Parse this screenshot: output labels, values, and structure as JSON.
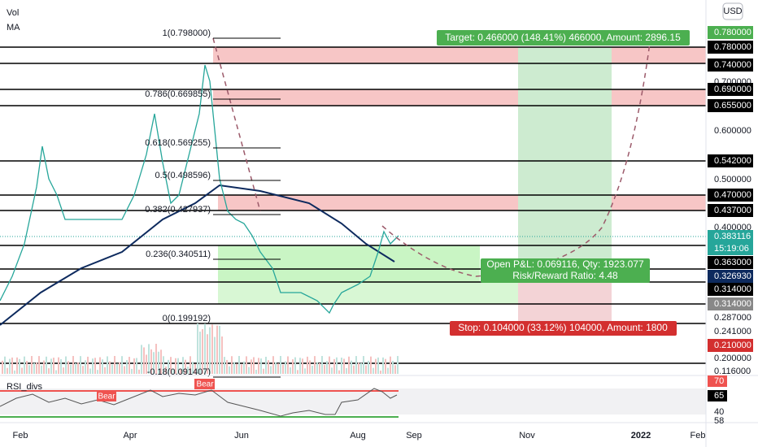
{
  "indicators": {
    "vol": "Vol",
    "ma": "MA",
    "rsi": "RSI_divs"
  },
  "currency": "USD",
  "price_axis": [
    "0.780000",
    "0.780000",
    "0.740000",
    "0.700000",
    "0.690000",
    "0.655000",
    "0.600000",
    "0.542000",
    "0.500000",
    "0.470000",
    "0.437000",
    "0.400000",
    "0.383116",
    "15:19:06",
    "0.363000",
    "0.326930",
    "0.314000",
    "0.314000",
    "0.287000",
    "0.241000",
    "0.210000",
    "0.200000",
    "0.116000"
  ],
  "rsi_axis": [
    "70",
    "65",
    "40",
    "58"
  ],
  "fib_levels": [
    "1(0.798000)",
    "0.786(0.669855)",
    "0.618(0.569255)",
    "0.5(0.498596)",
    "0.382(0.427937)",
    "0.236(0.340511)",
    "0(0.199192)",
    "-0.18(0.091407)"
  ],
  "position": {
    "target": "Target: 0.466000 (148.41%) 466000, Amount: 2896.15",
    "pnl": "Open P&L: 0.069116, Qty: 1923.077",
    "ratio": "Risk/Reward Ratio: 4.48",
    "stop": "Stop: 0.104000 (33.12%) 104000, Amount: 1800"
  },
  "divergences": [
    "Bear",
    "Bear"
  ],
  "time_axis": [
    "Feb",
    "Apr",
    "Jun",
    "Aug",
    "Sep",
    "Nov",
    "2022",
    "Feb"
  ]
}
